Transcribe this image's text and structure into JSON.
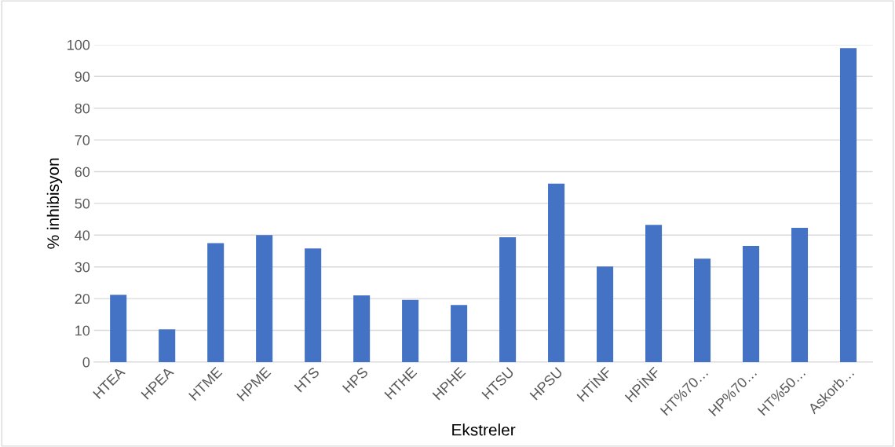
{
  "chart_data": {
    "type": "bar",
    "xlabel": "Ekstreler",
    "ylabel": "% inhibisyon",
    "categories": [
      "HTEA",
      "HPEA",
      "HTME",
      "HPME",
      "HTS",
      "HPS",
      "HTHE",
      "HPHE",
      "HTSU",
      "HPSU",
      "HTİNF",
      "HPİNF",
      "HT%70…",
      "HP%70…",
      "HT%50…",
      "Askorb…"
    ],
    "values": [
      21.2,
      10.3,
      37.5,
      40,
      35.8,
      21,
      19.6,
      18,
      39.3,
      56.2,
      30.1,
      43.2,
      32.6,
      36.6,
      42.3,
      98.9
    ],
    "color": "#4472c4",
    "ylim": [
      0,
      100
    ],
    "yticks": [
      0,
      10,
      20,
      30,
      40,
      50,
      60,
      70,
      80,
      90,
      100
    ],
    "grid": "y",
    "legend": false
  }
}
